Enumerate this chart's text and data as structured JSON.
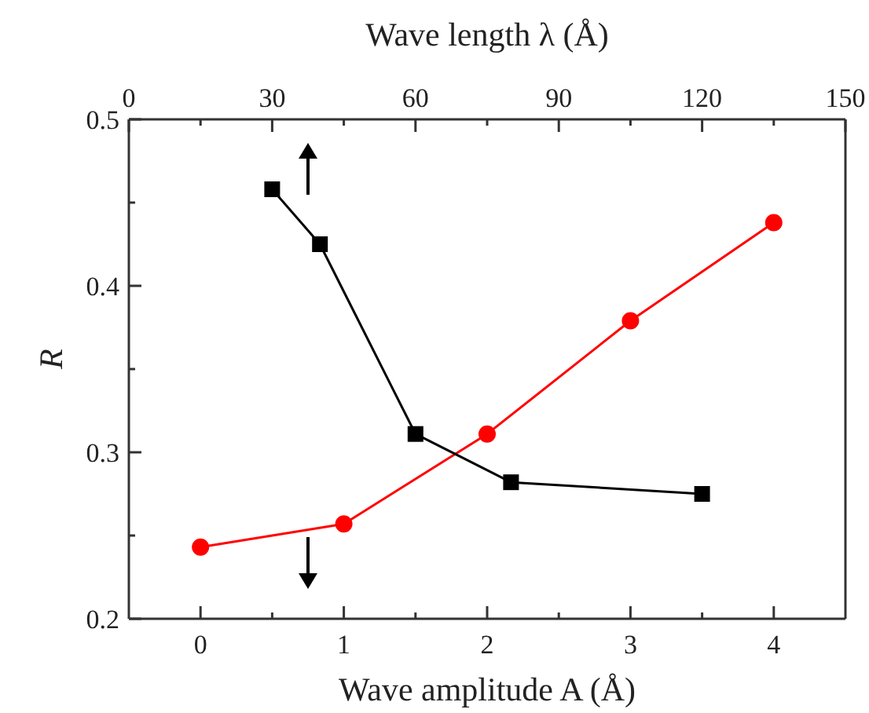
{
  "chart_data": {
    "type": "line",
    "xlabel": "Wave amplitude A (Å)",
    "x2label": "Wave length λ (Å)",
    "ylabel": "R",
    "xlim": [
      -0.5,
      4.5
    ],
    "xticks": [
      0,
      {
        "value": 0.5,
        "label": null
      },
      1,
      {
        "value": 1.5,
        "label": null
      },
      2,
      {
        "value": 2.5,
        "label": null
      },
      3,
      {
        "value": 3.5,
        "label": null
      },
      4
    ],
    "x2lim": [
      0,
      150
    ],
    "x2ticks": [
      0,
      {
        "value": 15,
        "label": null
      },
      30,
      {
        "value": 45,
        "label": null
      },
      60,
      {
        "value": 75,
        "label": null
      },
      90,
      {
        "value": 105,
        "label": null
      },
      120,
      {
        "value": 135,
        "label": null
      },
      150
    ],
    "ylim": [
      0.2,
      0.5
    ],
    "yticks": [
      0.2,
      {
        "value": 0.25,
        "label": null
      },
      0.3,
      {
        "value": 0.35,
        "label": null
      },
      0.4,
      {
        "value": 0.45,
        "label": null
      },
      0.5
    ],
    "line_style": "solid",
    "series": [
      {
        "color": "#ff0000",
        "marker": "circle",
        "x": [
          0,
          1,
          2,
          3,
          4
        ],
        "values": [
          0.243,
          0.257,
          0.311,
          0.379,
          0.438
        ]
      },
      {
        "color": "#000000",
        "marker": "square",
        "axis": "x2",
        "x": [
          30,
          40,
          60,
          80,
          120
        ],
        "values": [
          0.458,
          0.425,
          0.311,
          0.282,
          0.275
        ]
      }
    ]
  }
}
